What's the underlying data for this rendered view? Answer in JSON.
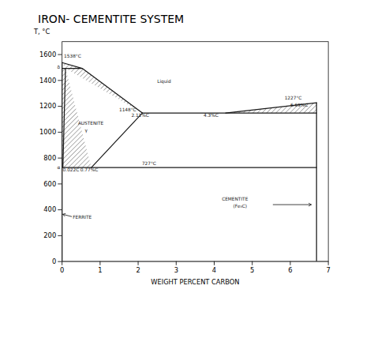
{
  "chart_data": {
    "type": "phase_diagram",
    "title": "IRON- CEMENTITE SYSTEM",
    "xlabel": "WEIGHT PERCENT CARBON",
    "ylabel": "T, °C",
    "xlim": [
      0,
      7
    ],
    "ylim": [
      0,
      1700
    ],
    "xticks": [
      0,
      1,
      2,
      3,
      4,
      5,
      6,
      7
    ],
    "yticks": [
      0,
      200,
      400,
      600,
      800,
      1000,
      1200,
      1400,
      1600
    ],
    "color": "#1a1a1a",
    "regions": [
      {
        "x": [
          0,
          0.53,
          0.09
        ],
        "y": [
          1538,
          1493,
          1493
        ]
      },
      {
        "x": [
          0.09,
          0.53,
          2.11
        ],
        "y": [
          1493,
          1493,
          1148
        ]
      },
      {
        "x": [
          4.3,
          6.69,
          6.69
        ],
        "y": [
          1148,
          1227,
          1148
        ]
      },
      {
        "x": [
          0,
          0,
          0.09,
          0.77,
          0.022
        ],
        "y": [
          727,
          1493,
          1493,
          727,
          727
        ]
      }
    ],
    "segments": [
      {
        "x": [
          0,
          0
        ],
        "y": [
          0,
          1538
        ]
      },
      {
        "x": [
          0,
          7
        ],
        "y": [
          0,
          0
        ]
      },
      {
        "x": [
          0,
          0.53
        ],
        "y": [
          1538,
          1493
        ]
      },
      {
        "x": [
          0.53,
          2.11
        ],
        "y": [
          1493,
          1148
        ]
      },
      {
        "x": [
          0,
          0.53
        ],
        "y": [
          1493,
          1493
        ]
      },
      {
        "x": [
          0.09,
          0.022
        ],
        "y": [
          1493,
          727
        ]
      },
      {
        "x": [
          2.11,
          0.77
        ],
        "y": [
          1148,
          727
        ]
      },
      {
        "x": [
          2.11,
          6.69
        ],
        "y": [
          1148,
          1148
        ]
      },
      {
        "x": [
          4.3,
          6.69
        ],
        "y": [
          1148,
          1227
        ]
      },
      {
        "x": [
          0.022,
          6.69
        ],
        "y": [
          727,
          727
        ]
      },
      {
        "x": [
          6.69,
          6.69
        ],
        "y": [
          0,
          1227
        ]
      }
    ],
    "annotations": [
      {
        "text": "1538°C",
        "x": 0.05,
        "y": 1575
      },
      {
        "text": "δ",
        "x": -0.13,
        "y": 1492
      },
      {
        "text": "Liquid",
        "x": 2.5,
        "y": 1380
      },
      {
        "text": "1227°C",
        "x": 5.85,
        "y": 1255
      },
      {
        "text": "1148°C",
        "x": 1.5,
        "y": 1163
      },
      {
        "text": "2.11%C",
        "x": 1.82,
        "y": 1120
      },
      {
        "text": "4.3%C",
        "x": 3.72,
        "y": 1120
      },
      {
        "text": "6.69%C",
        "x": 6.0,
        "y": 1195
      },
      {
        "text": "AUSTENITE",
        "x": 0.42,
        "y": 1055
      },
      {
        "text": "γ",
        "x": 0.6,
        "y": 1005
      },
      {
        "text": "727°C",
        "x": 2.1,
        "y": 745
      },
      {
        "text": "α",
        "x": -0.13,
        "y": 718
      },
      {
        "text": "0.022C",
        "x": 0.02,
        "y": 698
      },
      {
        "text": "0.77%C",
        "x": 0.48,
        "y": 698
      },
      {
        "text": "FERRITE",
        "x": 0.28,
        "y": 330
      },
      {
        "text": "CEMENTITE",
        "x": 4.2,
        "y": 470
      },
      {
        "text": "(Fe₃C)",
        "x": 4.5,
        "y": 415
      }
    ],
    "arrows": [
      {
        "x1": 0.25,
        "y1": 348,
        "x2": 0.02,
        "y2": 365
      },
      {
        "x1": 5.55,
        "y1": 440,
        "x2": 6.55,
        "y2": 440
      }
    ]
  }
}
